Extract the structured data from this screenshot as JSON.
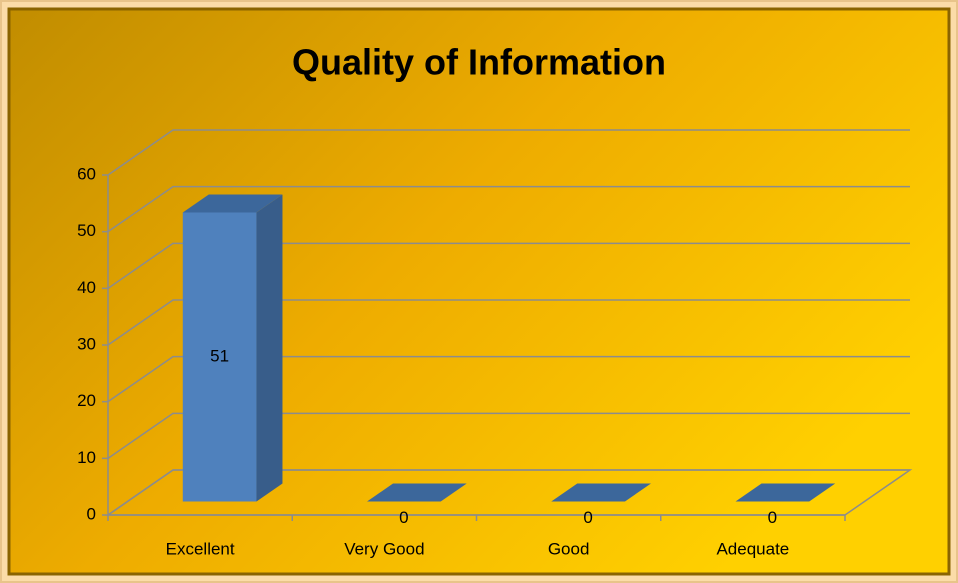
{
  "chart_data": {
    "type": "bar3d",
    "title": "Quality of Information",
    "categories": [
      "Excellent",
      "Very Good",
      "Good",
      "Adequate"
    ],
    "values": [
      51,
      0,
      0,
      0
    ],
    "color": "#4f81bd",
    "ylim": [
      0,
      60
    ],
    "yticks": [
      0,
      10,
      20,
      30,
      40,
      50,
      60
    ],
    "grid": true
  }
}
